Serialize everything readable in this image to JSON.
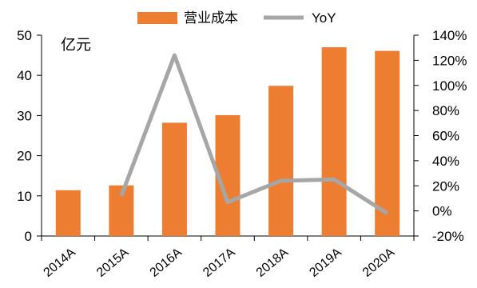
{
  "chart_data": {
    "type": "bar+line",
    "unit_label": "亿元",
    "categories": [
      "2014A",
      "2015A",
      "2016A",
      "2017A",
      "2018A",
      "2019A",
      "2020A"
    ],
    "series": [
      {
        "name": "营业成本",
        "type": "bar",
        "axis": "left",
        "color": "#ED7D31",
        "values": [
          11.4,
          12.6,
          28.2,
          30.1,
          37.4,
          47.0,
          46.1
        ]
      },
      {
        "name": "YoY",
        "type": "line",
        "axis": "right",
        "color": "#A6A6A6",
        "values": [
          null,
          12,
          124,
          7,
          24,
          25,
          -2
        ]
      }
    ],
    "y_left": {
      "min": 0,
      "max": 50,
      "ticks": [
        0,
        10,
        20,
        30,
        40,
        50
      ],
      "tick_labels": [
        "0",
        "10",
        "20",
        "30",
        "40",
        "50"
      ]
    },
    "y_right": {
      "min": -20,
      "max": 140,
      "ticks": [
        -20,
        0,
        20,
        40,
        60,
        80,
        100,
        120,
        140
      ],
      "tick_labels": [
        "-20%",
        "0%",
        "20%",
        "40%",
        "60%",
        "80%",
        "100%",
        "120%",
        "140%"
      ]
    },
    "legend_position": "top-center",
    "grid": false
  }
}
